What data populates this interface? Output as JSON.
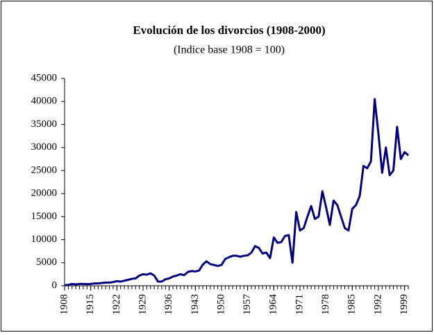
{
  "chart_data": {
    "type": "line",
    "title": "Evolución de los divorcios (1908-2000)",
    "subtitle": "(Indice base 1908 = 100)",
    "x": [
      1908,
      1909,
      1910,
      1911,
      1912,
      1913,
      1914,
      1915,
      1916,
      1917,
      1918,
      1919,
      1920,
      1921,
      1922,
      1923,
      1924,
      1925,
      1926,
      1927,
      1928,
      1929,
      1930,
      1931,
      1932,
      1933,
      1934,
      1935,
      1936,
      1937,
      1938,
      1939,
      1940,
      1941,
      1942,
      1943,
      1944,
      1945,
      1946,
      1947,
      1948,
      1949,
      1950,
      1951,
      1952,
      1953,
      1954,
      1955,
      1956,
      1957,
      1958,
      1959,
      1960,
      1961,
      1962,
      1963,
      1964,
      1965,
      1966,
      1967,
      1968,
      1969,
      1970,
      1971,
      1972,
      1973,
      1974,
      1975,
      1976,
      1977,
      1978,
      1979,
      1980,
      1981,
      1982,
      1983,
      1984,
      1985,
      1986,
      1987,
      1988,
      1989,
      1990,
      1991,
      1992,
      1993,
      1994,
      1995,
      1996,
      1997,
      1998,
      1999,
      2000
    ],
    "series": [
      {
        "color": "#000080",
        "values": [
          100,
          200,
          400,
          300,
          400,
          400,
          350,
          400,
          500,
          500,
          600,
          700,
          700,
          800,
          1000,
          900,
          1100,
          1300,
          1500,
          1600,
          2200,
          2500,
          2400,
          2700,
          2200,
          900,
          900,
          1400,
          1600,
          2000,
          2200,
          2500,
          2300,
          3000,
          3200,
          3100,
          3300,
          4600,
          5300,
          4700,
          4500,
          4300,
          4500,
          5800,
          6200,
          6500,
          6500,
          6300,
          6500,
          6600,
          7200,
          8600,
          8200,
          7000,
          7200,
          6000,
          10500,
          9300,
          9500,
          10800,
          11000,
          5000,
          16000,
          12000,
          12500,
          15000,
          17300,
          14500,
          15000,
          20500,
          17000,
          13200,
          18500,
          17500,
          15000,
          12500,
          12000,
          16700,
          17500,
          19500,
          26000,
          25500,
          27000,
          40500,
          33000,
          24500,
          30000,
          24000,
          25000,
          34500,
          27500,
          29000,
          28300
        ]
      }
    ],
    "xlim": [
      1908,
      2000
    ],
    "xticks": [
      1908,
      1915,
      1922,
      1929,
      1936,
      1943,
      1950,
      1957,
      1964,
      1971,
      1978,
      1985,
      1992,
      1999
    ],
    "ylim": [
      0,
      45000
    ],
    "yticks": [
      0,
      5000,
      10000,
      15000,
      20000,
      25000,
      30000,
      35000,
      40000,
      45000
    ],
    "grid": false
  }
}
